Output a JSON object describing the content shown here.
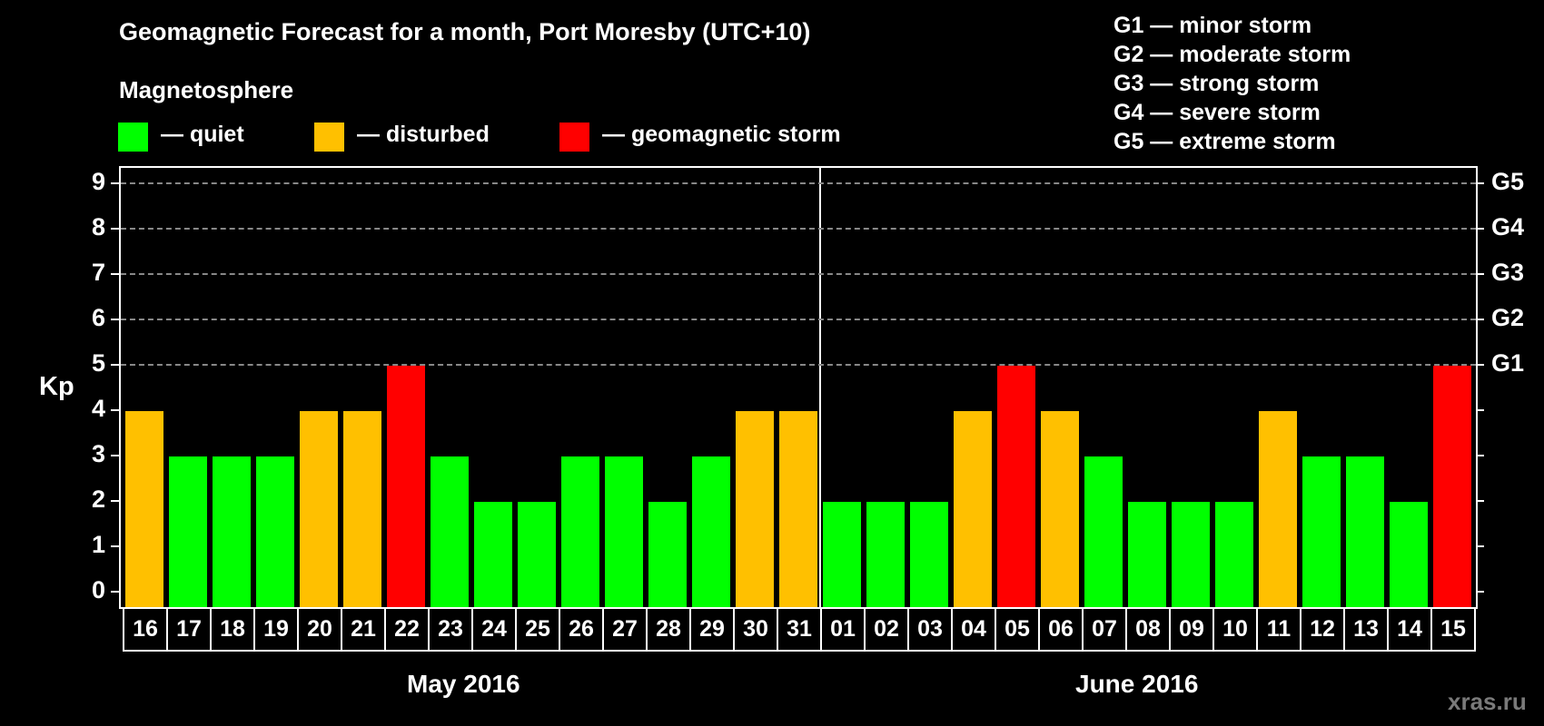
{
  "header": {
    "title": "Geomagnetic Forecast for a month, Port Moresby (UTC+10)",
    "subtitle": "Magnetosphere"
  },
  "legend": {
    "items": [
      {
        "label": "— quiet",
        "color": "#00ff00"
      },
      {
        "label": "— disturbed",
        "color": "#ffc000"
      },
      {
        "label": "— geomagnetic storm",
        "color": "#ff0000"
      }
    ],
    "g_scale": [
      "G1 — minor storm",
      "G2 — moderate storm",
      "G3 — strong storm",
      "G4 — severe storm",
      "G5 — extreme storm"
    ]
  },
  "axes": {
    "ylabel": "Kp",
    "yticks": [
      "0",
      "1",
      "2",
      "3",
      "4",
      "5",
      "6",
      "7",
      "8",
      "9"
    ],
    "right_ticks": [
      "G1",
      "G2",
      "G3",
      "G4",
      "G5"
    ]
  },
  "months": [
    "May 2016",
    "June 2016"
  ],
  "watermark": "xras.ru",
  "colors": {
    "quiet": "#00ff00",
    "disturbed": "#ffc000",
    "storm": "#ff0000",
    "grid": "#888888"
  },
  "chart_data": {
    "type": "bar",
    "title": "Geomagnetic Forecast for a month, Port Moresby (UTC+10)",
    "xlabel": "",
    "ylabel": "Kp",
    "ylim": [
      0,
      9
    ],
    "grid": "dashed horizontal at Kp 5-9",
    "categories": [
      "16",
      "17",
      "18",
      "19",
      "20",
      "21",
      "22",
      "23",
      "24",
      "25",
      "26",
      "27",
      "28",
      "29",
      "30",
      "31",
      "01",
      "02",
      "03",
      "04",
      "05",
      "06",
      "07",
      "08",
      "09",
      "10",
      "11",
      "12",
      "13",
      "14",
      "15"
    ],
    "month_groups": [
      {
        "label": "May 2016",
        "from": "16",
        "to": "31"
      },
      {
        "label": "June 2016",
        "from": "01",
        "to": "15"
      }
    ],
    "values": [
      4,
      3,
      3,
      3,
      4,
      4,
      5,
      3,
      2,
      2,
      3,
      3,
      2,
      3,
      4,
      4,
      2,
      2,
      2,
      4,
      5,
      4,
      3,
      2,
      2,
      2,
      4,
      3,
      3,
      2,
      5
    ],
    "status": [
      "disturbed",
      "quiet",
      "quiet",
      "quiet",
      "disturbed",
      "disturbed",
      "storm",
      "quiet",
      "quiet",
      "quiet",
      "quiet",
      "quiet",
      "quiet",
      "quiet",
      "disturbed",
      "disturbed",
      "quiet",
      "quiet",
      "quiet",
      "disturbed",
      "storm",
      "disturbed",
      "quiet",
      "quiet",
      "quiet",
      "quiet",
      "disturbed",
      "quiet",
      "quiet",
      "quiet",
      "storm"
    ],
    "right_axis": {
      "5": "G1",
      "6": "G2",
      "7": "G3",
      "8": "G4",
      "9": "G5"
    },
    "legend": [
      "quiet",
      "disturbed",
      "geomagnetic storm"
    ]
  }
}
